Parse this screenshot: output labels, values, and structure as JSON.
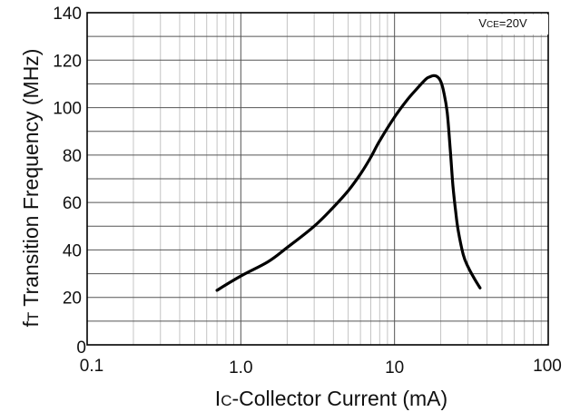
{
  "chart_data": {
    "type": "line",
    "xscale": "log",
    "xlim": [
      0.1,
      100
    ],
    "ylim": [
      0,
      140
    ],
    "x_ticks": [
      "0.1",
      "1.0",
      "10",
      "100"
    ],
    "y_ticks": [
      "0",
      "20",
      "40",
      "60",
      "80",
      "100",
      "120",
      "140"
    ],
    "xlabel": {
      "main": "I",
      "sub": "C",
      "rest": "-Collector Current  (mA)"
    },
    "ylabel": {
      "main": "f",
      "sub": "T",
      "rest": " Transition Frequency (MHz)"
    },
    "annotation": {
      "main": "V",
      "sub": "CE",
      "rest": "=20V"
    },
    "grid": true,
    "series": [
      {
        "x": [
          0.7,
          1.0,
          1.5,
          2.0,
          3.0,
          4.0,
          5.0,
          6.0,
          7.0,
          8.0,
          10.0,
          12.0,
          14.0,
          16.0,
          17.0,
          18.0,
          19.0,
          20.0,
          21.0,
          22.0,
          23.0,
          24.0,
          25.0,
          26.0,
          28.0,
          30.0,
          33.0,
          36.0
        ],
        "y": [
          23,
          29,
          35,
          41,
          50,
          58,
          65,
          72,
          79,
          86,
          96,
          103,
          108,
          112,
          113,
          113.5,
          113,
          111,
          106,
          98,
          83,
          67,
          56,
          48,
          38,
          33,
          28,
          24
        ]
      }
    ]
  }
}
